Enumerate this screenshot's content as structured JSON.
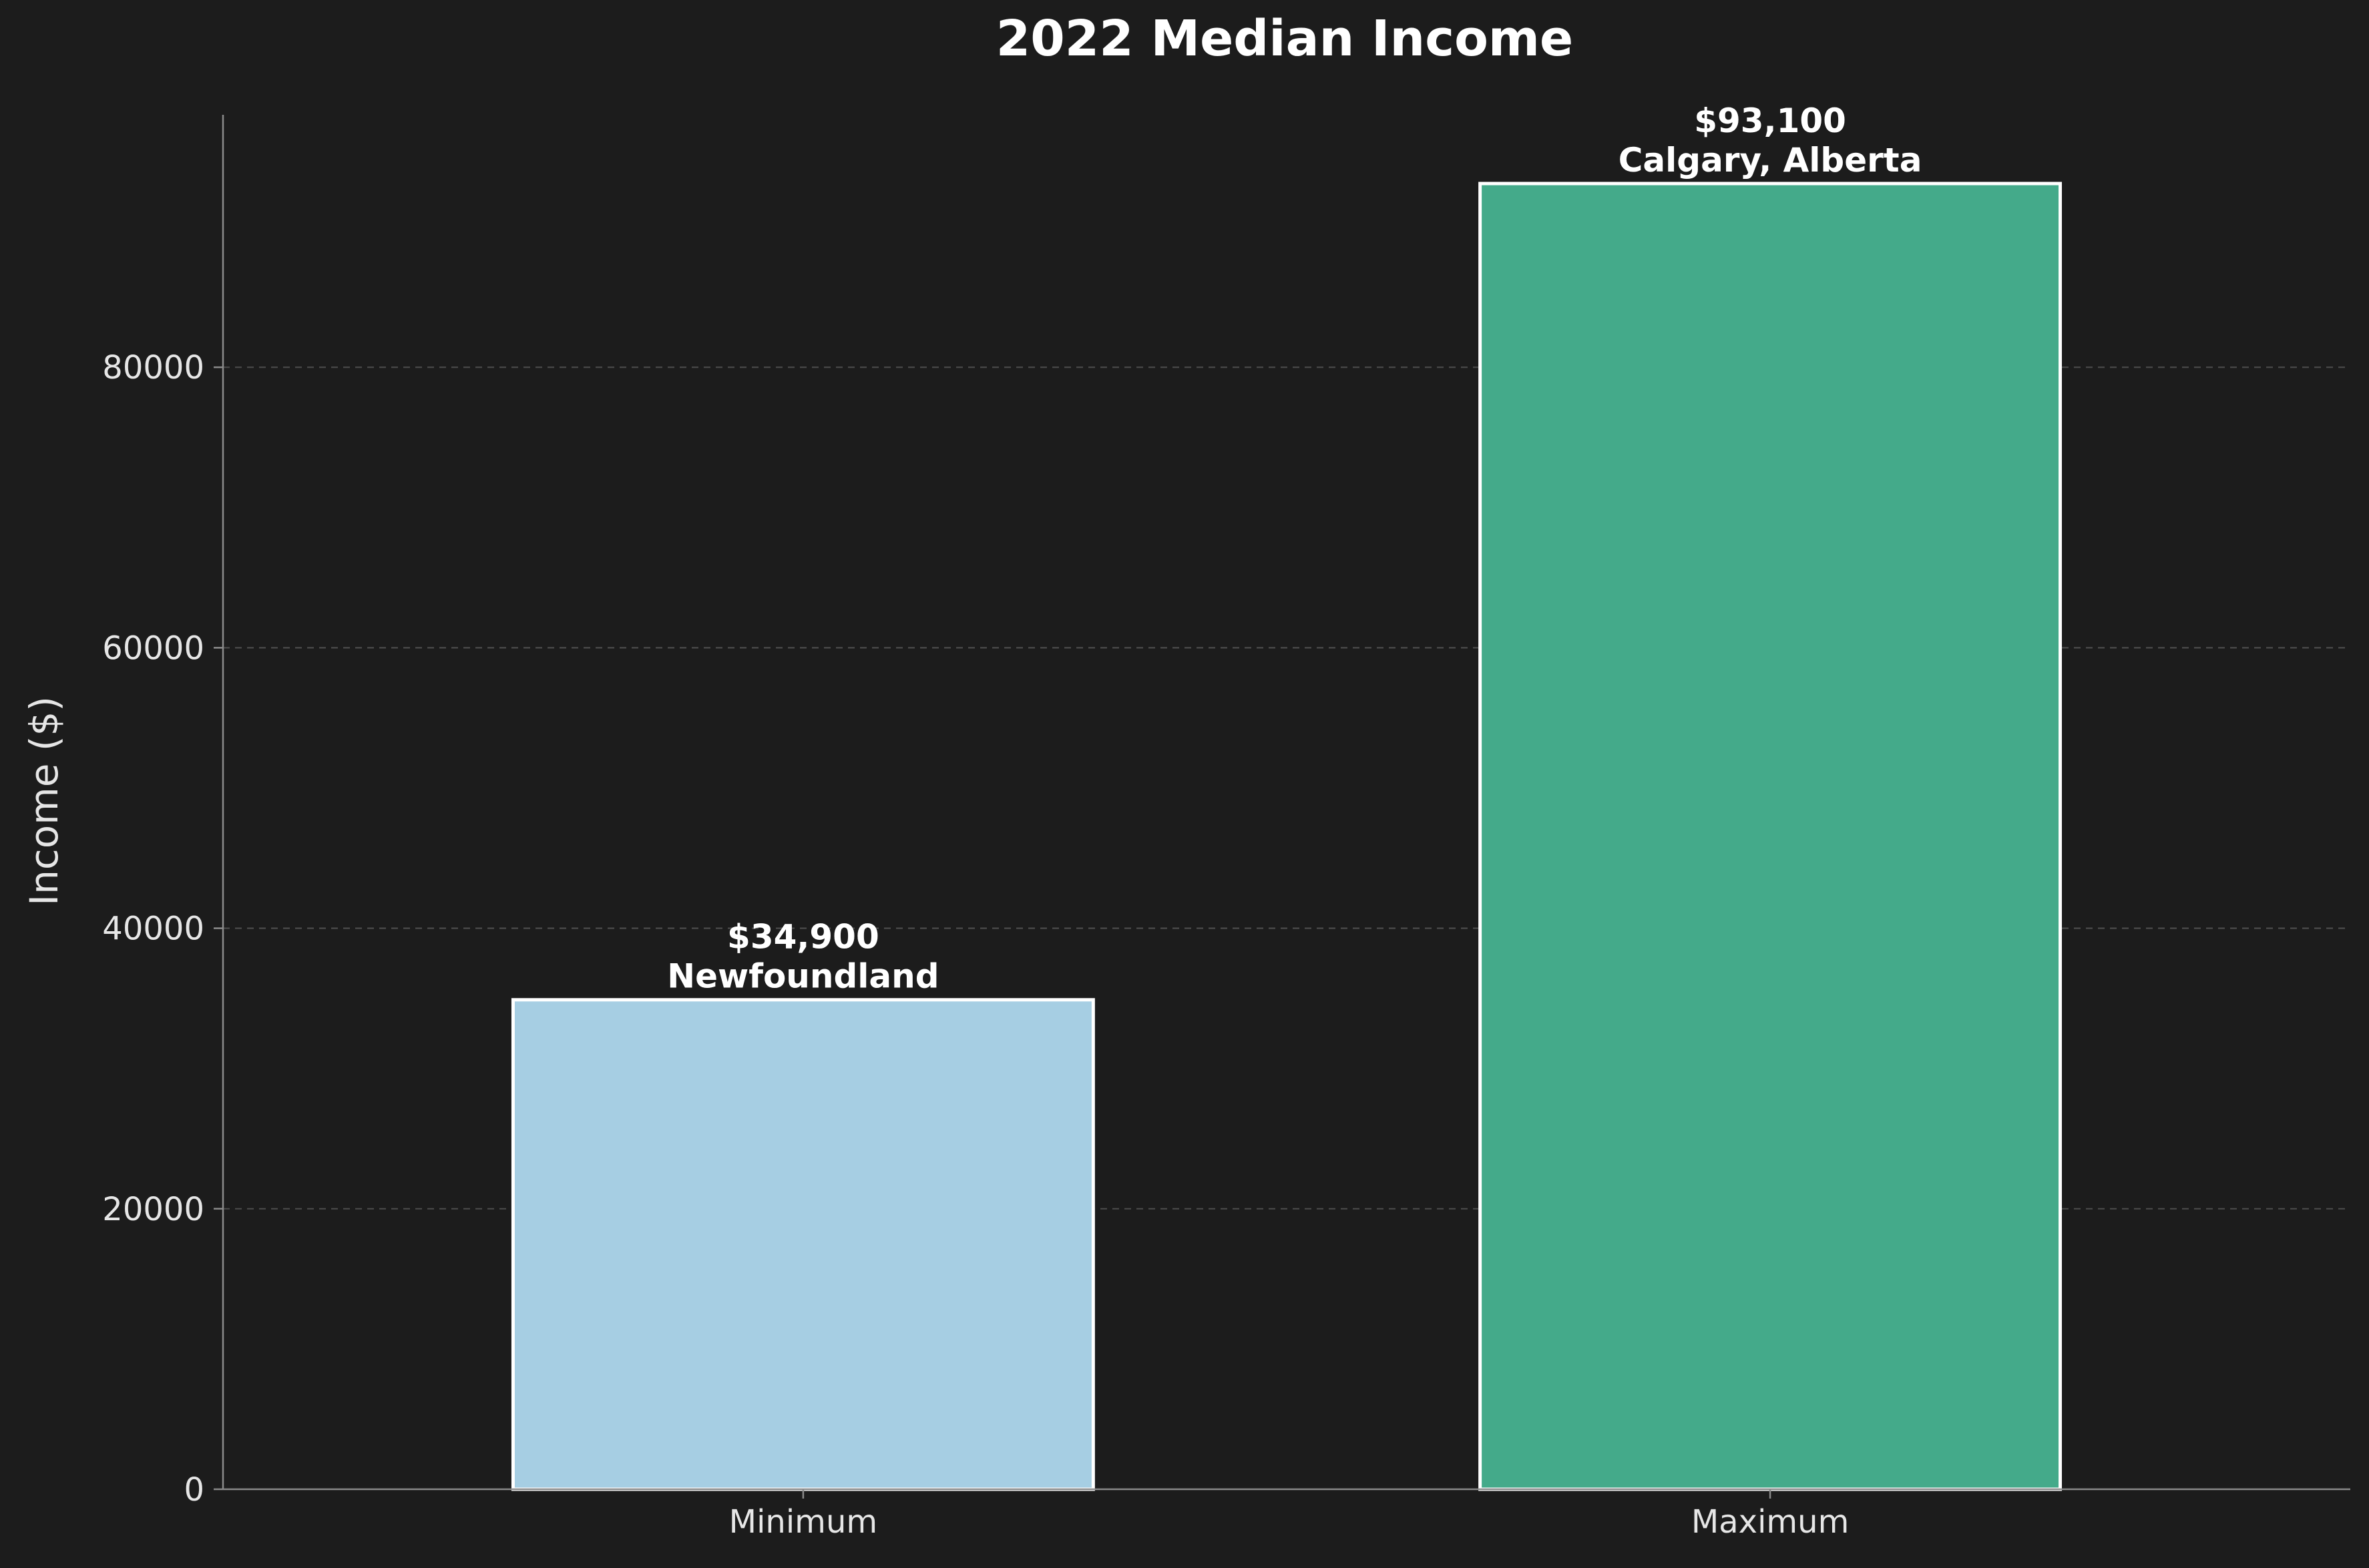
{
  "chart_data": {
    "type": "bar",
    "title": "2022 Median Income",
    "xlabel": "",
    "ylabel": "Income ($)",
    "categories": [
      "Minimum",
      "Maximum"
    ],
    "values": [
      34900,
      93100
    ],
    "bar_labels": [
      {
        "value": "$34,900",
        "place": "Newfoundland"
      },
      {
        "value": "$93,100",
        "place": "Calgary, Alberta"
      }
    ],
    "bar_colors": [
      "#a6cee3",
      "#44aa8a"
    ],
    "ylim": [
      0,
      98000
    ],
    "yticks": [
      0,
      20000,
      40000,
      60000,
      80000
    ],
    "ytick_labels": [
      "0",
      "20000",
      "40000",
      "60000",
      "80000"
    ],
    "grid": true,
    "grid_axis": "y",
    "background": "#1c1c1c"
  }
}
